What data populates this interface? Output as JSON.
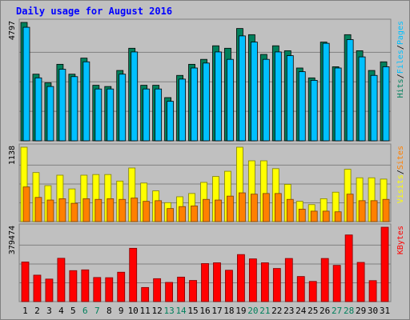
{
  "title": "Daily usage for August 2016",
  "colors": {
    "title": "#0000ff",
    "hits": "#00805c",
    "files": "#00c0ff",
    "pages": "#00c0ff",
    "visits": "#ffff00",
    "sites": "#ff8000",
    "kbytes": "#ff0000",
    "weekend_day": "#00805c",
    "weekday": "#000000"
  },
  "chart_data": [
    {
      "type": "bar",
      "name": "hits_files_pages",
      "y_max_label": "4797",
      "ylim": [
        0,
        4797
      ],
      "legend": [
        {
          "label": "Pages",
          "color": "#00c0ff"
        },
        {
          "label": "Files",
          "color": "#00c0ff"
        },
        {
          "label": "Hits",
          "color": "#00805c"
        }
      ],
      "categories": [
        "1",
        "2",
        "3",
        "4",
        "5",
        "6",
        "7",
        "8",
        "9",
        "10",
        "11",
        "12",
        "13",
        "14",
        "15",
        "16",
        "17",
        "18",
        "19",
        "20",
        "21",
        "22",
        "23",
        "24",
        "25",
        "26",
        "27",
        "28",
        "29",
        "30",
        "31"
      ],
      "series": [
        {
          "name": "Hits",
          "values": [
            4797,
            2700,
            2350,
            3100,
            2700,
            3350,
            2250,
            2200,
            2850,
            3750,
            2250,
            2250,
            1750,
            2650,
            3100,
            3300,
            3850,
            3750,
            4550,
            4300,
            3500,
            3850,
            3650,
            2950,
            2550,
            4000,
            3000,
            4300,
            3650,
            2850,
            3200
          ]
        },
        {
          "name": "Files",
          "values": [
            4600,
            2550,
            2200,
            2900,
            2600,
            3200,
            2100,
            2100,
            2700,
            3600,
            2100,
            2100,
            1600,
            2500,
            2950,
            3150,
            3600,
            3300,
            4250,
            4000,
            3300,
            3600,
            3450,
            2800,
            2450,
            3950,
            2950,
            4100,
            3400,
            2650,
            3000
          ]
        }
      ]
    },
    {
      "type": "bar",
      "name": "visits_sites",
      "y_max_label": "1138",
      "ylim": [
        0,
        1138
      ],
      "legend": [
        {
          "label": "Sites",
          "color": "#ff8000"
        },
        {
          "label": "Visits",
          "color": "#ffff00"
        }
      ],
      "categories": [
        "1",
        "2",
        "3",
        "4",
        "5",
        "6",
        "7",
        "8",
        "9",
        "10",
        "11",
        "12",
        "13",
        "14",
        "15",
        "16",
        "17",
        "18",
        "19",
        "20",
        "21",
        "22",
        "23",
        "24",
        "25",
        "26",
        "27",
        "28",
        "29",
        "30",
        "31"
      ],
      "series": [
        {
          "name": "Visits",
          "values": [
            1138,
            750,
            550,
            710,
            500,
            710,
            720,
            720,
            620,
            820,
            590,
            470,
            290,
            380,
            430,
            600,
            690,
            770,
            1138,
            930,
            930,
            810,
            570,
            310,
            260,
            350,
            450,
            800,
            670,
            670,
            650
          ]
        },
        {
          "name": "Sites",
          "values": [
            530,
            370,
            330,
            350,
            280,
            350,
            340,
            350,
            340,
            360,
            310,
            320,
            200,
            230,
            240,
            340,
            330,
            390,
            440,
            420,
            430,
            430,
            340,
            190,
            160,
            160,
            150,
            420,
            320,
            320,
            340
          ]
        }
      ]
    },
    {
      "type": "bar",
      "name": "kbytes",
      "y_max_label": "379474",
      "ylim": [
        0,
        379474
      ],
      "legend": [
        {
          "label": "KBytes",
          "color": "#ff0000"
        }
      ],
      "categories": [
        "1",
        "2",
        "3",
        "4",
        "5",
        "6",
        "7",
        "8",
        "9",
        "10",
        "11",
        "12",
        "13",
        "14",
        "15",
        "16",
        "17",
        "18",
        "19",
        "20",
        "21",
        "22",
        "23",
        "24",
        "25",
        "26",
        "27",
        "28",
        "29",
        "30",
        "31"
      ],
      "series": [
        {
          "name": "KBytes",
          "values": [
            202000,
            135000,
            115000,
            221000,
            158000,
            162000,
            123000,
            122000,
            150000,
            272000,
            72000,
            117000,
            98000,
            125000,
            108000,
            194000,
            198000,
            160000,
            240000,
            218000,
            198000,
            169000,
            220000,
            128000,
            103000,
            220000,
            185000,
            340000,
            200000,
            107000,
            379474
          ]
        }
      ]
    }
  ],
  "x_labels": [
    {
      "text": "1",
      "weekend": false
    },
    {
      "text": "2",
      "weekend": false
    },
    {
      "text": "3",
      "weekend": false
    },
    {
      "text": "4",
      "weekend": false
    },
    {
      "text": "5",
      "weekend": false
    },
    {
      "text": "6",
      "weekend": true
    },
    {
      "text": "7",
      "weekend": true
    },
    {
      "text": "8",
      "weekend": false
    },
    {
      "text": "9",
      "weekend": false
    },
    {
      "text": "10",
      "weekend": false
    },
    {
      "text": "11",
      "weekend": false
    },
    {
      "text": "12",
      "weekend": false
    },
    {
      "text": "13",
      "weekend": true
    },
    {
      "text": "14",
      "weekend": true
    },
    {
      "text": "15",
      "weekend": false
    },
    {
      "text": "16",
      "weekend": false
    },
    {
      "text": "17",
      "weekend": false
    },
    {
      "text": "18",
      "weekend": false
    },
    {
      "text": "19",
      "weekend": false
    },
    {
      "text": "20",
      "weekend": true
    },
    {
      "text": "21",
      "weekend": true
    },
    {
      "text": "22",
      "weekend": false
    },
    {
      "text": "23",
      "weekend": false
    },
    {
      "text": "24",
      "weekend": false
    },
    {
      "text": "25",
      "weekend": false
    },
    {
      "text": "26",
      "weekend": false
    },
    {
      "text": "27",
      "weekend": true
    },
    {
      "text": "28",
      "weekend": true
    },
    {
      "text": "29",
      "weekend": false
    },
    {
      "text": "30",
      "weekend": false
    },
    {
      "text": "31",
      "weekend": false
    }
  ],
  "legend_separator": "/"
}
